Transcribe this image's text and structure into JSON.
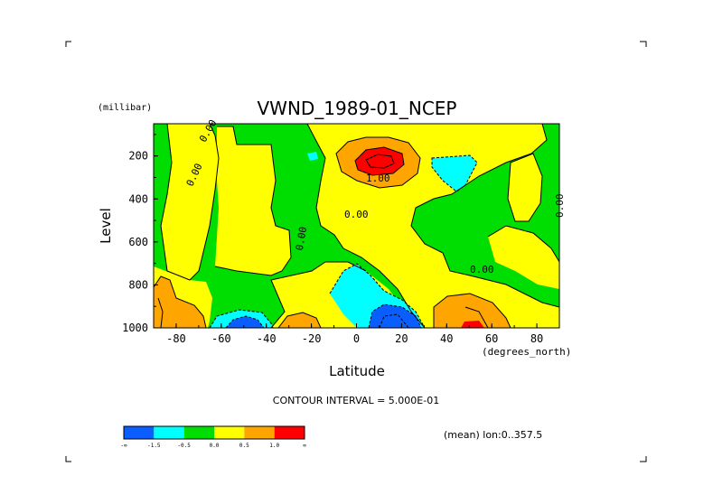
{
  "chart_data": {
    "type": "heatmap",
    "title": "VWND_1989-01_NCEP",
    "xlabel": "Latitude",
    "x_unit": "(degrees_north)",
    "ylabel": "Level",
    "y_unit": "(millibar)",
    "x_ticks": [
      "-80",
      "-60",
      "-40",
      "-20",
      "0",
      "20",
      "40",
      "60",
      "80"
    ],
    "y_ticks": [
      "200",
      "400",
      "600",
      "800",
      "1000"
    ],
    "xlim": [
      -90,
      90
    ],
    "ylim": [
      1000,
      50
    ],
    "contour_interval_text": "CONTOUR INTERVAL = 5.000E-01",
    "annotation": "(mean) lon:0..357.5",
    "contour_labels": [
      "0.00",
      "0.00",
      "1.00",
      "0.00",
      "0.00",
      "0.00",
      "0.00"
    ],
    "legend": {
      "colors": [
        "#0a5dff",
        "#00ffff",
        "#00dd00",
        "#ffff00",
        "#ffa500",
        "#ff0000"
      ],
      "labels": [
        "-∞",
        "-1.5",
        "-0.5",
        "0.0",
        "0.5",
        "1.0",
        "∞"
      ]
    },
    "colors": {
      "deep_blue": "#0a5dff",
      "cyan": "#00ffff",
      "green": "#00dd00",
      "yellow": "#ffff00",
      "orange": "#ffa500",
      "red": "#ff0000"
    }
  }
}
